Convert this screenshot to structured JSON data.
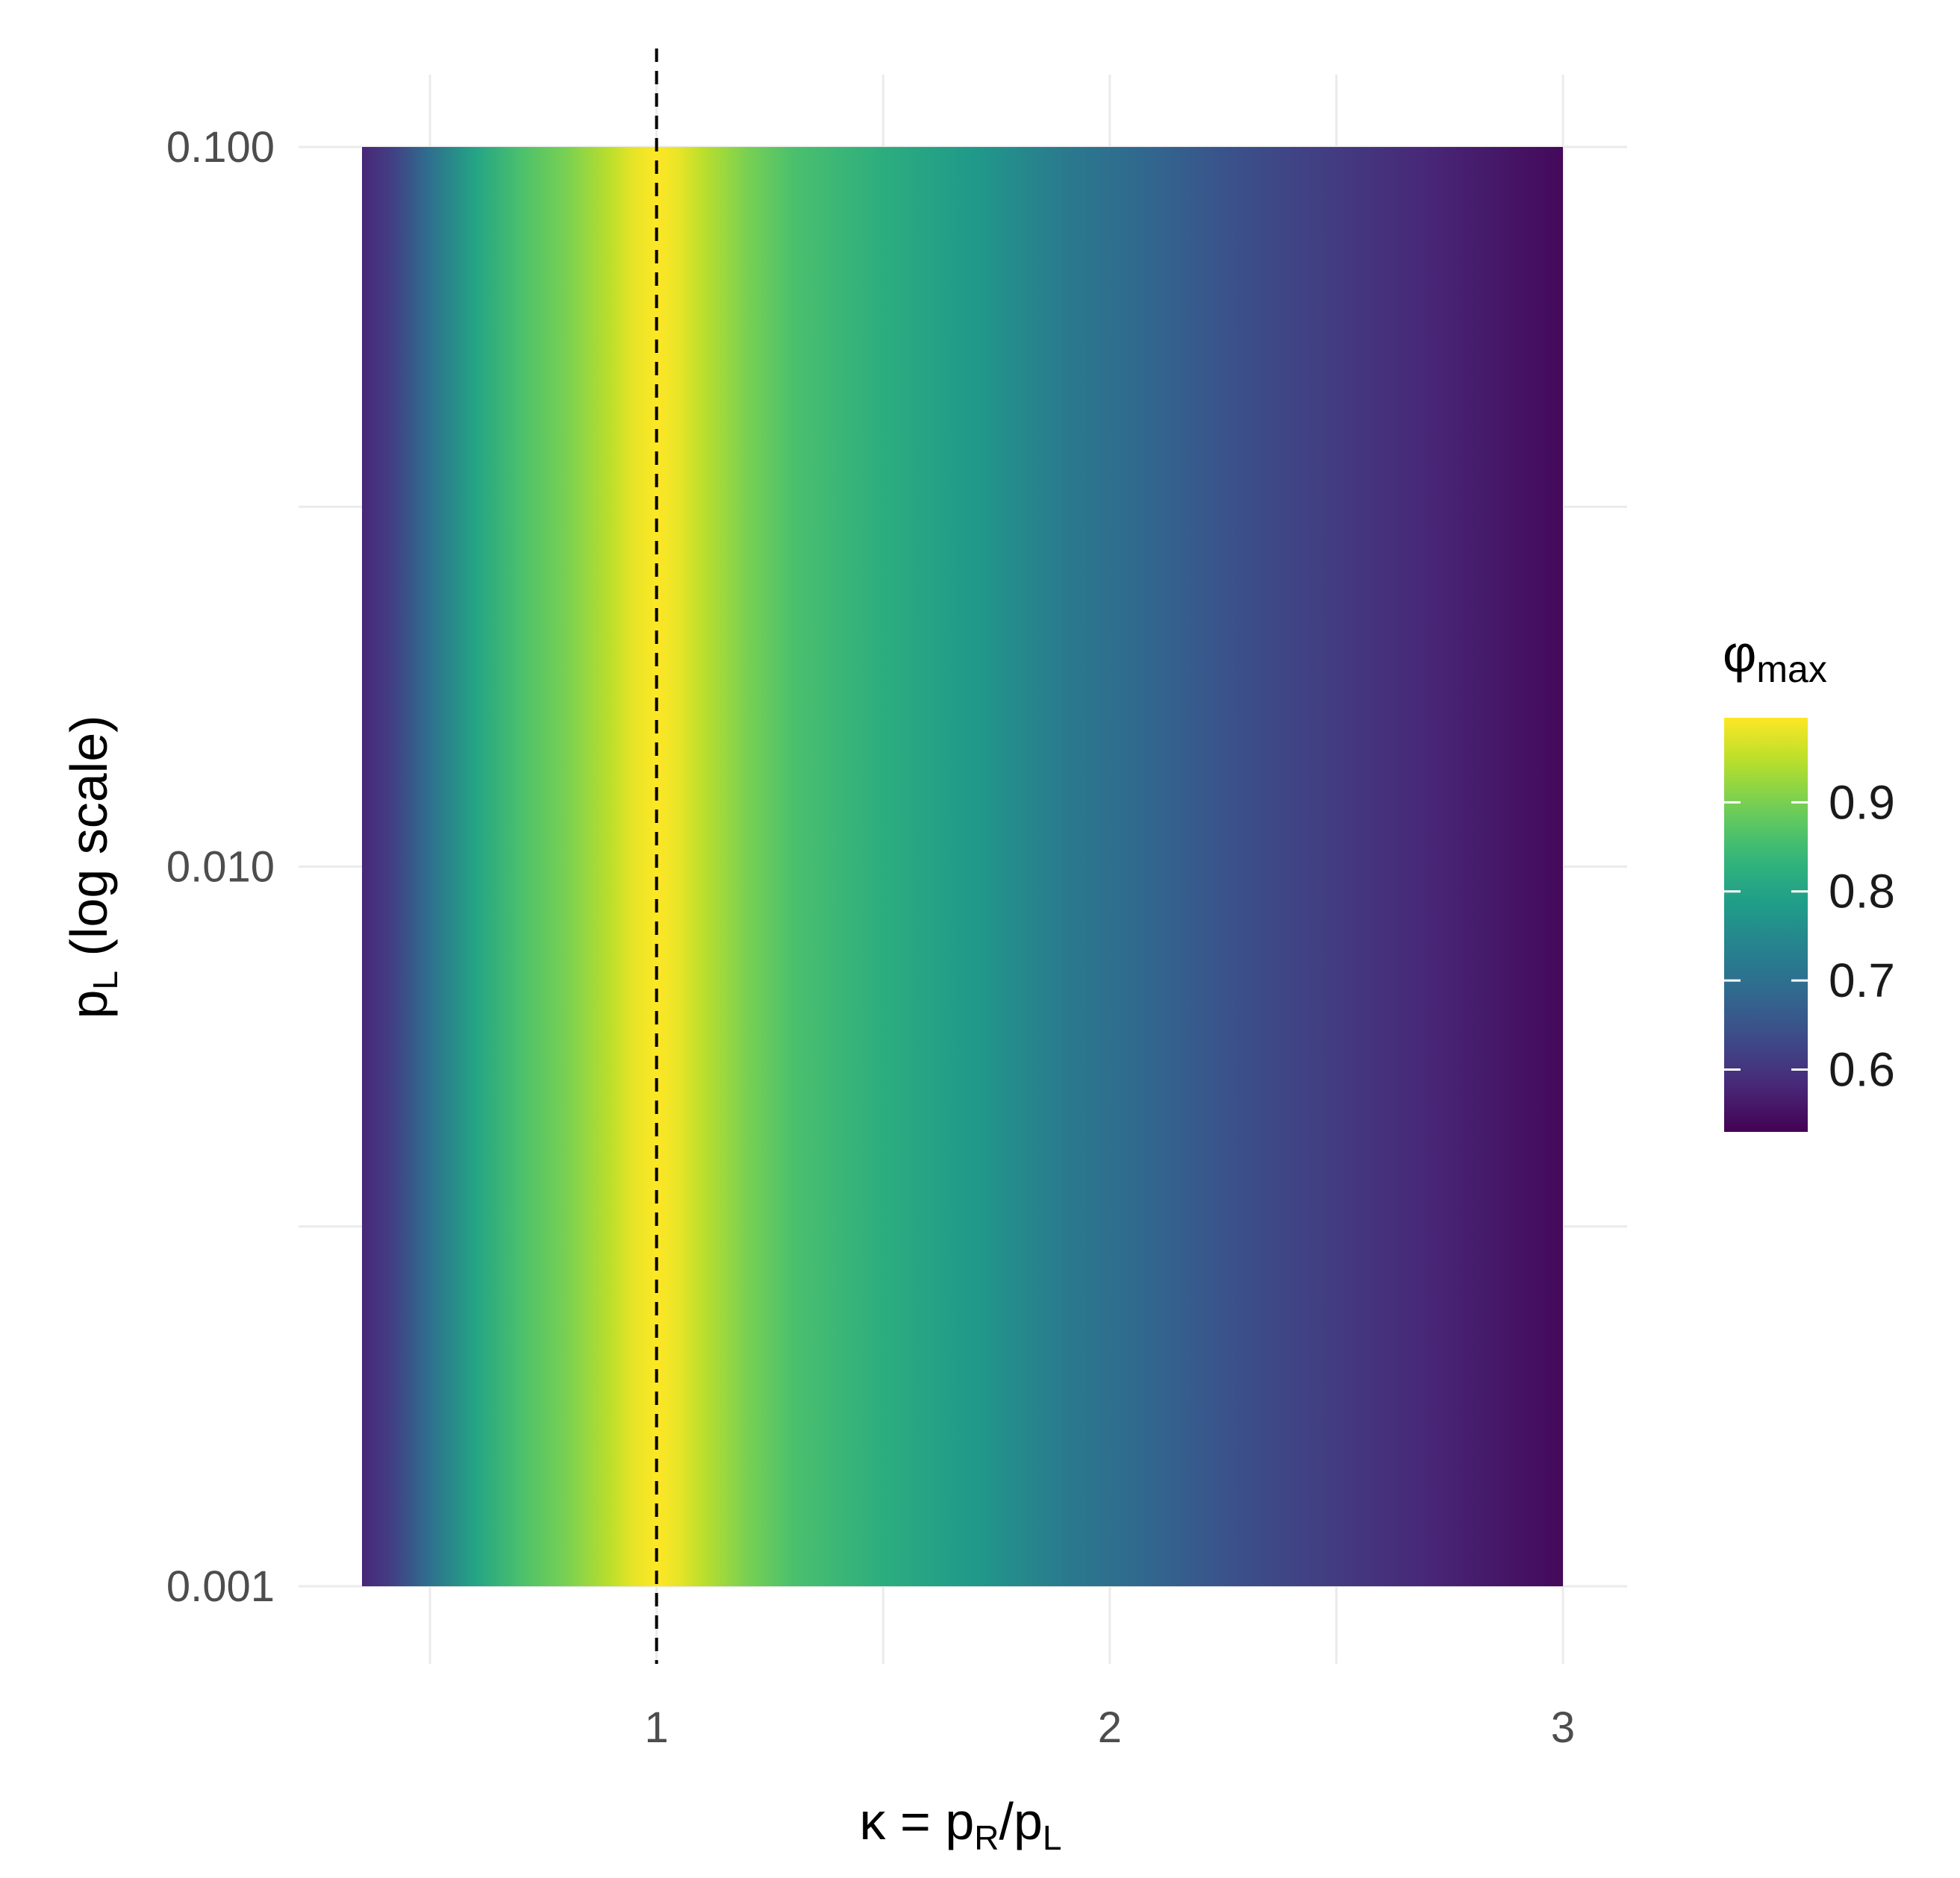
{
  "chart_data": {
    "type": "heatmap",
    "title": "",
    "x": {
      "label_parts": {
        "kappa": "κ",
        "equals": " = ",
        "p1": "p",
        "p1_sub": "R",
        "slash": "/",
        "p2": "p",
        "p2_sub": "L"
      },
      "range": [
        0.35,
        3.0
      ],
      "ticks": [
        1,
        2,
        3
      ],
      "tick_labels": [
        "1",
        "2",
        "3"
      ],
      "minor_gridlines": [
        0.5,
        1.5,
        2.5
      ]
    },
    "y": {
      "label_parts": {
        "p": "p",
        "sub": "L",
        "rest": " (log scale)"
      },
      "scale": "log10",
      "range": [
        0.001,
        0.1
      ],
      "ticks": [
        0.001,
        0.01,
        0.1
      ],
      "tick_labels": [
        "0.001",
        "0.010",
        "0.100"
      ]
    },
    "z": {
      "name_parts": {
        "phi": "φ",
        "sub": "max"
      },
      "range": [
        0.53,
        0.995
      ],
      "ticks": [
        0.6,
        0.7,
        0.8,
        0.9
      ],
      "tick_labels": [
        "0.6",
        "0.7",
        "0.8",
        "0.9"
      ],
      "colormap": "viridis"
    },
    "profile_along_x": {
      "note_values_constant_over_y": true,
      "x": [
        0.35,
        0.42,
        0.5,
        0.6,
        0.7,
        0.8,
        0.9,
        0.95,
        1.0,
        1.05,
        1.1,
        1.2,
        1.3,
        1.5,
        1.7,
        1.9,
        2.1,
        2.3,
        2.5,
        2.7,
        2.85,
        3.0
      ],
      "phi_max": [
        0.58,
        0.62,
        0.7,
        0.8,
        0.86,
        0.9,
        0.95,
        0.98,
        0.995,
        0.98,
        0.95,
        0.9,
        0.86,
        0.82,
        0.78,
        0.72,
        0.68,
        0.64,
        0.61,
        0.58,
        0.56,
        0.54
      ]
    },
    "reference_line": {
      "x": 1,
      "style": "dashed",
      "color": "#000000"
    },
    "grid": true,
    "legend": {
      "position": "right",
      "kind": "colorbar"
    }
  }
}
